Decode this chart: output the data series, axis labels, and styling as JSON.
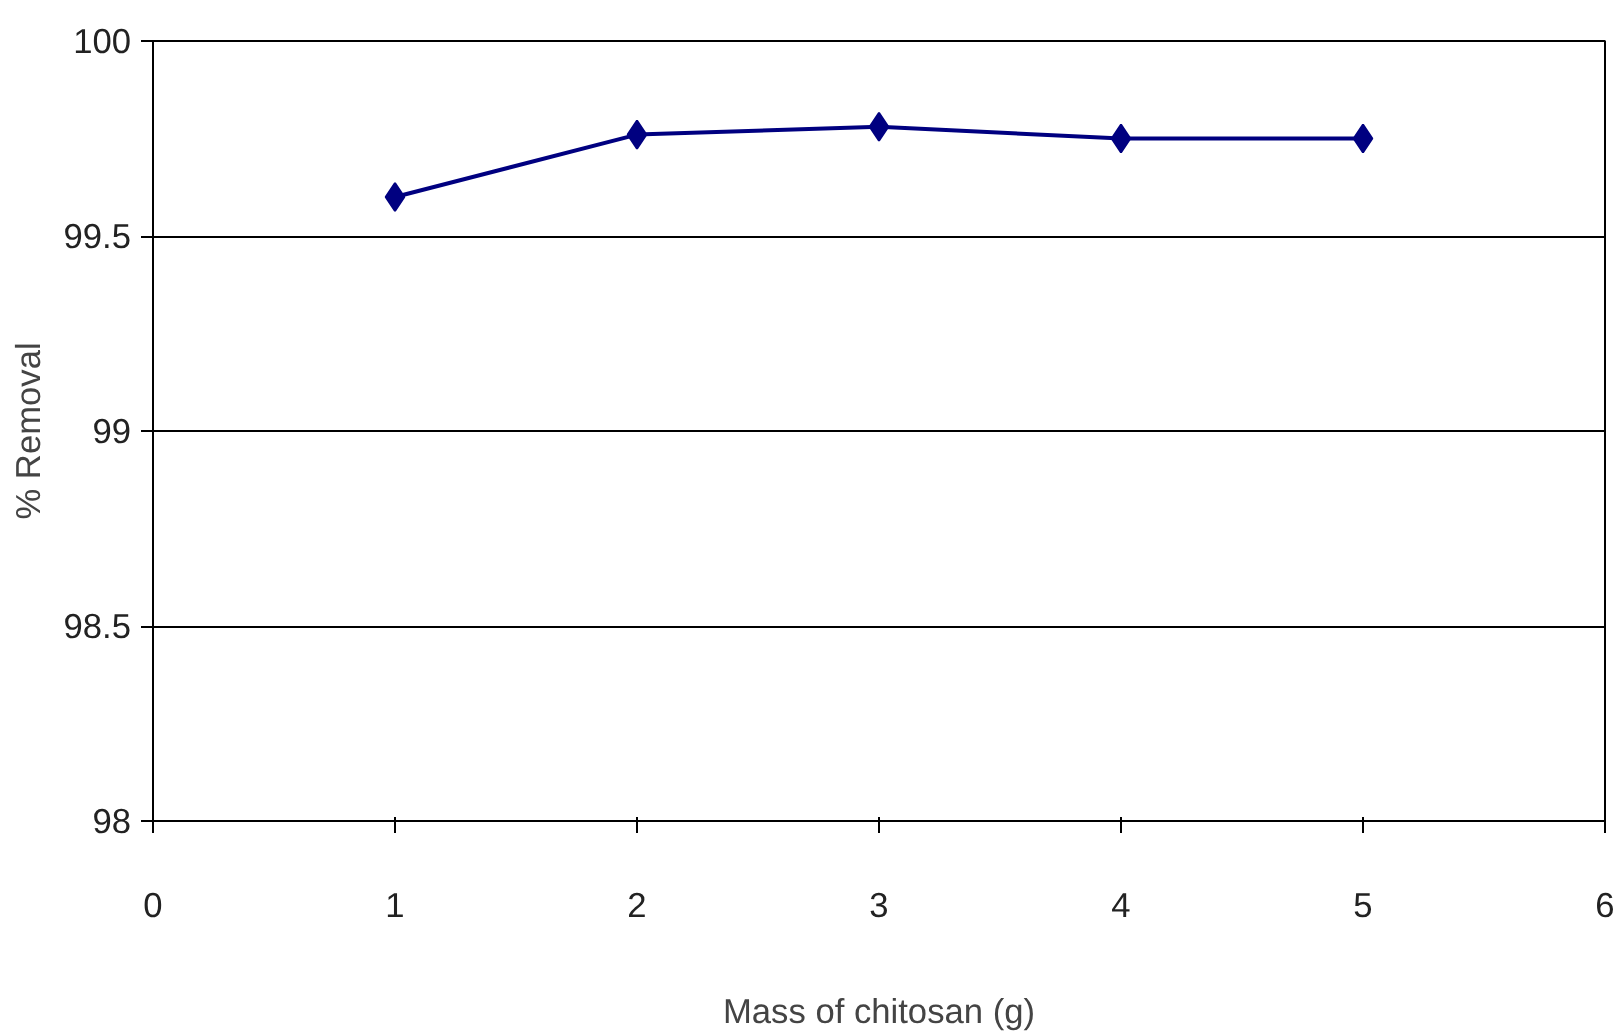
{
  "chart_data": {
    "type": "line",
    "xlabel": "Mass of chitosan (g)",
    "ylabel": "% Removal",
    "x": [
      1,
      2,
      3,
      4,
      5
    ],
    "series": [
      {
        "color": "#000080",
        "values": [
          99.6,
          99.76,
          99.78,
          99.75,
          99.75
        ]
      }
    ],
    "xlim": [
      0,
      6
    ],
    "xticks": [
      0,
      1,
      2,
      3,
      4,
      5,
      6
    ],
    "ylim": [
      98,
      100
    ],
    "yticks": [
      98,
      98.5,
      99,
      99.5,
      100
    ],
    "grid": "y",
    "marker": "diamond",
    "line_style": "solid"
  }
}
